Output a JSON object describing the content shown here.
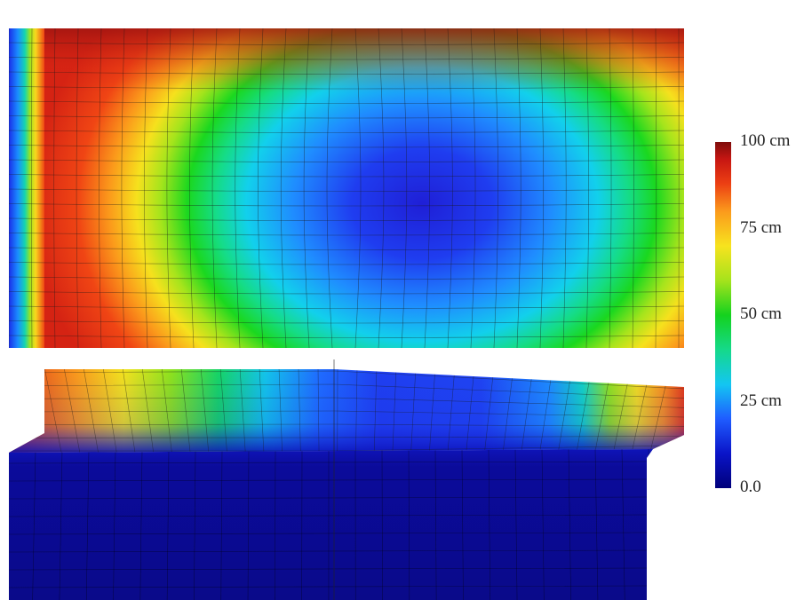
{
  "colorbar": {
    "ticks": [
      {
        "label": "100 cm",
        "value": 100
      },
      {
        "label": "75 cm",
        "value": 75
      },
      {
        "label": "50 cm",
        "value": 50
      },
      {
        "label": "25 cm",
        "value": 25
      },
      {
        "label": "0.0",
        "value": 0
      }
    ],
    "min": 0,
    "max": 100,
    "colormap": [
      "#00007a",
      "#0a14c8",
      "#1f5cff",
      "#13c6f2",
      "#15d98a",
      "#14d21e",
      "#a6e31c",
      "#f7e31e",
      "#fb9a1c",
      "#ec3f13",
      "#c71612",
      "#7e0c0b"
    ]
  }
}
